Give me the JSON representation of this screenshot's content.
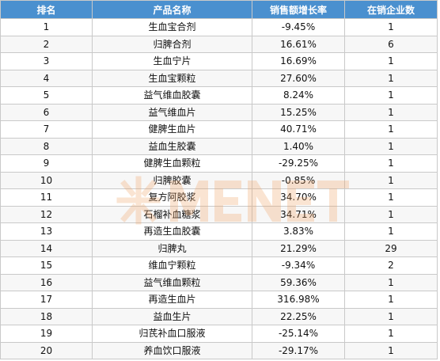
{
  "table": {
    "columns": [
      "排名",
      "产品名称",
      "销售额增长率",
      "在销企业数"
    ],
    "rows": [
      [
        "1",
        "生血宝合剂",
        "-9.45%",
        "1"
      ],
      [
        "2",
        "归脾合剂",
        "16.61%",
        "6"
      ],
      [
        "3",
        "生血宁片",
        "16.69%",
        "1"
      ],
      [
        "4",
        "生血宝颗粒",
        "27.60%",
        "1"
      ],
      [
        "5",
        "益气维血胶囊",
        "8.24%",
        "1"
      ],
      [
        "6",
        "益气维血片",
        "15.25%",
        "1"
      ],
      [
        "7",
        "健脾生血片",
        "40.71%",
        "1"
      ],
      [
        "8",
        "益血生胶囊",
        "1.40%",
        "1"
      ],
      [
        "9",
        "健脾生血颗粒",
        "-29.25%",
        "1"
      ],
      [
        "10",
        "归脾胶囊",
        "-0.85%",
        "1"
      ],
      [
        "11",
        "复方阿胶浆",
        "34.70%",
        "1"
      ],
      [
        "12",
        "石榴补血糖浆",
        "34.71%",
        "1"
      ],
      [
        "13",
        "再造生血胶囊",
        "3.83%",
        "1"
      ],
      [
        "14",
        "归脾丸",
        "21.29%",
        "29"
      ],
      [
        "15",
        "维血宁颗粒",
        "-9.34%",
        "2"
      ],
      [
        "16",
        "益气维血颗粒",
        "59.36%",
        "1"
      ],
      [
        "17",
        "再造生血片",
        "316.98%",
        "1"
      ],
      [
        "18",
        "益血生片",
        "22.25%",
        "1"
      ],
      [
        "19",
        "归芪补血口服液",
        "-25.14%",
        "1"
      ],
      [
        "20",
        "养血饮口服液",
        "-29.17%",
        "1"
      ]
    ]
  },
  "watermark": {
    "text": "米内网 MENET",
    "color": "#f0a060"
  },
  "colors": {
    "header_bg": "#4a90cf",
    "header_text": "#ffffff",
    "border": "#c9c9c9",
    "row_alt": "#f7f7f7"
  }
}
